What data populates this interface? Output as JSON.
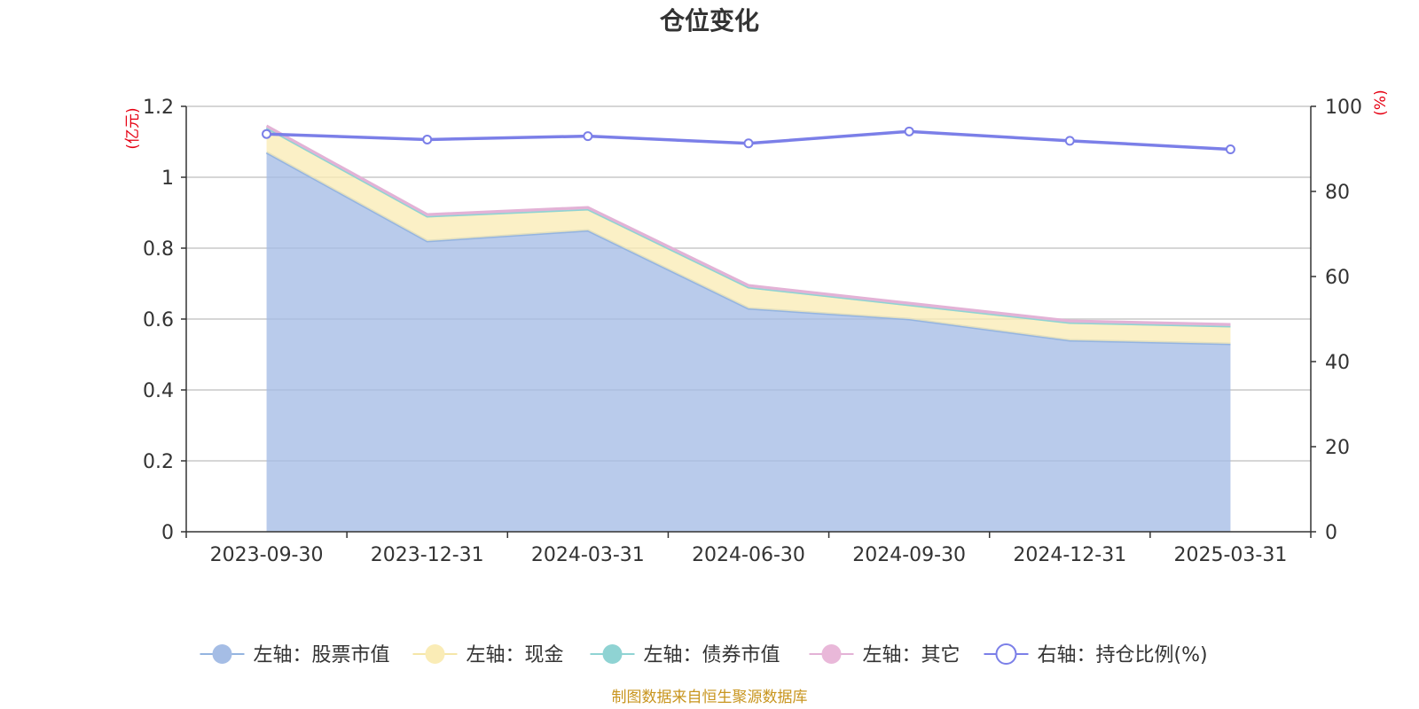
{
  "chart_data": {
    "type": "area",
    "title": "仓位变化",
    "categories": [
      "2023-09-30",
      "2023-12-31",
      "2024-03-31",
      "2024-06-30",
      "2024-09-30",
      "2024-12-31",
      "2025-03-31"
    ],
    "left_axis": {
      "unit_label": "(亿元)",
      "ylim": [
        0,
        1.2
      ],
      "ticks": [
        "0",
        "0.2",
        "0.4",
        "0.6",
        "0.8",
        "1",
        "1.2"
      ],
      "stacked": true
    },
    "right_axis": {
      "unit_label": "(%)",
      "ylim": [
        0,
        100
      ],
      "ticks": [
        "0",
        "20",
        "40",
        "60",
        "80",
        "100"
      ]
    },
    "series": [
      {
        "name": "左轴：股票市值",
        "axis": "left",
        "kind": "area",
        "color": "#a5bde5",
        "line_color": "#94b4e0",
        "values": [
          1.07,
          0.82,
          0.85,
          0.63,
          0.6,
          0.54,
          0.53
        ]
      },
      {
        "name": "左轴：现金",
        "axis": "left",
        "kind": "area",
        "color": "#faecb6",
        "line_color": "#f5e6a8",
        "values": [
          0.07,
          0.07,
          0.06,
          0.06,
          0.04,
          0.05,
          0.05
        ]
      },
      {
        "name": "左轴：债券市值",
        "axis": "left",
        "kind": "area",
        "color": "#8fd3d3",
        "line_color": "#8fd3d3",
        "values": [
          0,
          0,
          0,
          0,
          0,
          0,
          0
        ]
      },
      {
        "name": "左轴：其它",
        "axis": "left",
        "kind": "area",
        "color": "#e9b8d9",
        "line_color": "#e3b2d6",
        "values": [
          0.005,
          0.005,
          0.005,
          0.005,
          0.005,
          0.005,
          0.005
        ]
      },
      {
        "name": "右轴：持仓比例(%)",
        "axis": "right",
        "kind": "line",
        "color": "#7b7fe8",
        "values": [
          93.5,
          92.2,
          93.0,
          91.3,
          94.1,
          91.9,
          89.9
        ]
      }
    ],
    "grid": true,
    "legend_position": "bottom"
  },
  "source_note": "制图数据来自恒生聚源数据库"
}
